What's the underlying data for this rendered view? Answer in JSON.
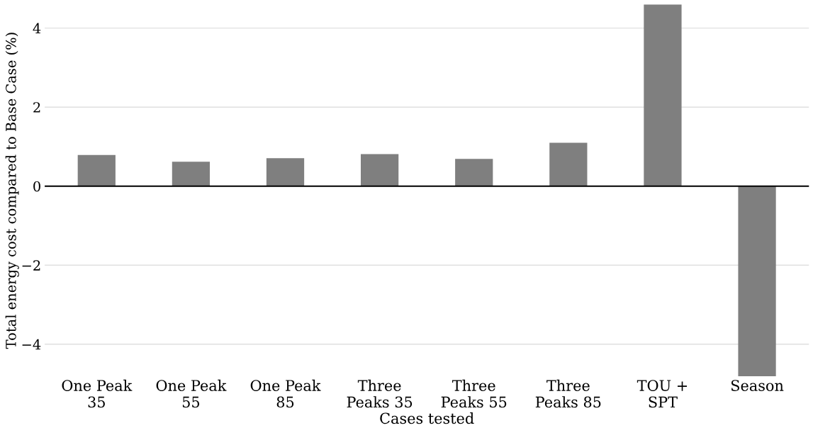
{
  "chart_data": {
    "type": "bar",
    "xlabel": "Cases tested",
    "ylabel": "Total energy cost compared to Base Case (%)",
    "categories": [
      "One Peak\n35",
      "One Peak\n55",
      "One Peak\n85",
      "Three\nPeaks 35",
      "Three\nPeaks 55",
      "Three\nPeaks 85",
      "TOU +\nSPT",
      "Season"
    ],
    "values": [
      0.79,
      0.62,
      0.71,
      0.81,
      0.69,
      1.1,
      4.6,
      -4.81
    ],
    "color": "#7f7f7f",
    "yticks": [
      {
        "value": -4,
        "label": "−4"
      },
      {
        "value": -2,
        "label": "−2"
      },
      0,
      2,
      4
    ],
    "ylim": [
      -4.81,
      4.6
    ],
    "grid": "y",
    "ref_lines": [
      {
        "axis": "y",
        "value": 0,
        "color": "#000000"
      }
    ]
  }
}
